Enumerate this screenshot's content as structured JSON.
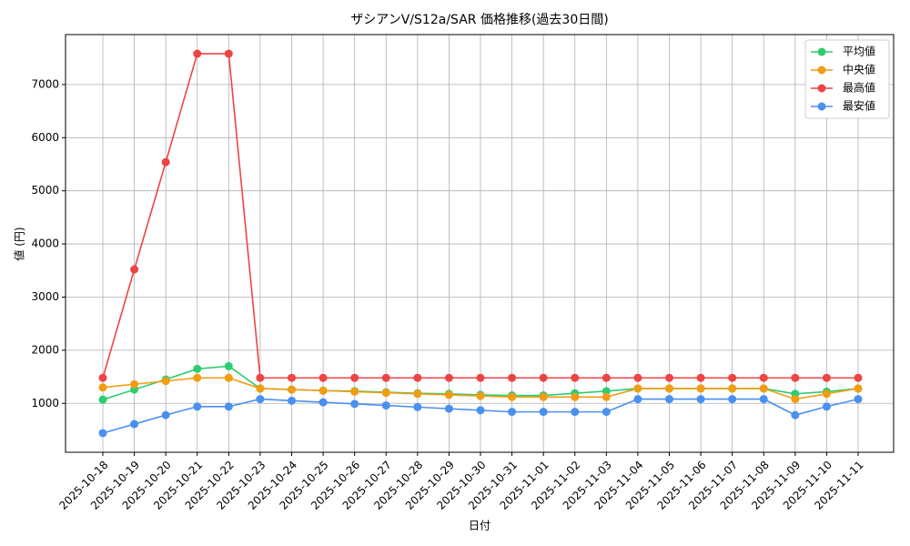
{
  "chart_data": {
    "type": "line",
    "title": "ザシアンV/S12a/SAR 価格推移(過去30日間)",
    "xlabel": "日付",
    "ylabel": "値 (円)",
    "categories": [
      "2025-10-18",
      "2025-10-19",
      "2025-10-20",
      "2025-10-21",
      "2025-10-22",
      "2025-10-23",
      "2025-10-24",
      "2025-10-25",
      "2025-10-26",
      "2025-10-27",
      "2025-10-28",
      "2025-10-29",
      "2025-10-30",
      "2025-10-31",
      "2025-11-01",
      "2025-11-02",
      "2025-11-03",
      "2025-11-04",
      "2025-11-05",
      "2025-11-06",
      "2025-11-07",
      "2025-11-08",
      "2025-11-09",
      "2025-11-10",
      "2025-11-11"
    ],
    "series": [
      {
        "name": "平均値",
        "color": "#2ecc71",
        "values": [
          1070,
          1260,
          1450,
          1650,
          1700,
          1280,
          1260,
          1240,
          1230,
          1210,
          1190,
          1180,
          1160,
          1150,
          1150,
          1190,
          1230,
          1280,
          1280,
          1280,
          1280,
          1280,
          1180,
          1220,
          1280
        ]
      },
      {
        "name": "中央値",
        "color": "#f39c12",
        "values": [
          1300,
          1360,
          1420,
          1480,
          1480,
          1280,
          1260,
          1240,
          1220,
          1200,
          1180,
          1160,
          1140,
          1120,
          1120,
          1120,
          1120,
          1280,
          1280,
          1280,
          1280,
          1280,
          1080,
          1180,
          1280
        ]
      },
      {
        "name": "最高値",
        "color": "#ef4444",
        "values": [
          1480,
          3520,
          5540,
          7580,
          7580,
          1480,
          1480,
          1480,
          1480,
          1480,
          1480,
          1480,
          1480,
          1480,
          1480,
          1480,
          1480,
          1480,
          1480,
          1480,
          1480,
          1480,
          1480,
          1480,
          1480
        ]
      },
      {
        "name": "最安値",
        "color": "#4a90f0",
        "values": [
          440,
          610,
          780,
          940,
          940,
          1080,
          1050,
          1020,
          990,
          960,
          930,
          900,
          870,
          840,
          840,
          840,
          840,
          1080,
          1080,
          1080,
          1080,
          1080,
          780,
          940,
          1080
        ]
      }
    ],
    "ylim": [
      80,
      7940
    ],
    "yticks": [
      1000,
      2000,
      3000,
      4000,
      5000,
      6000,
      7000
    ],
    "grid": true,
    "legend": "upper right"
  }
}
